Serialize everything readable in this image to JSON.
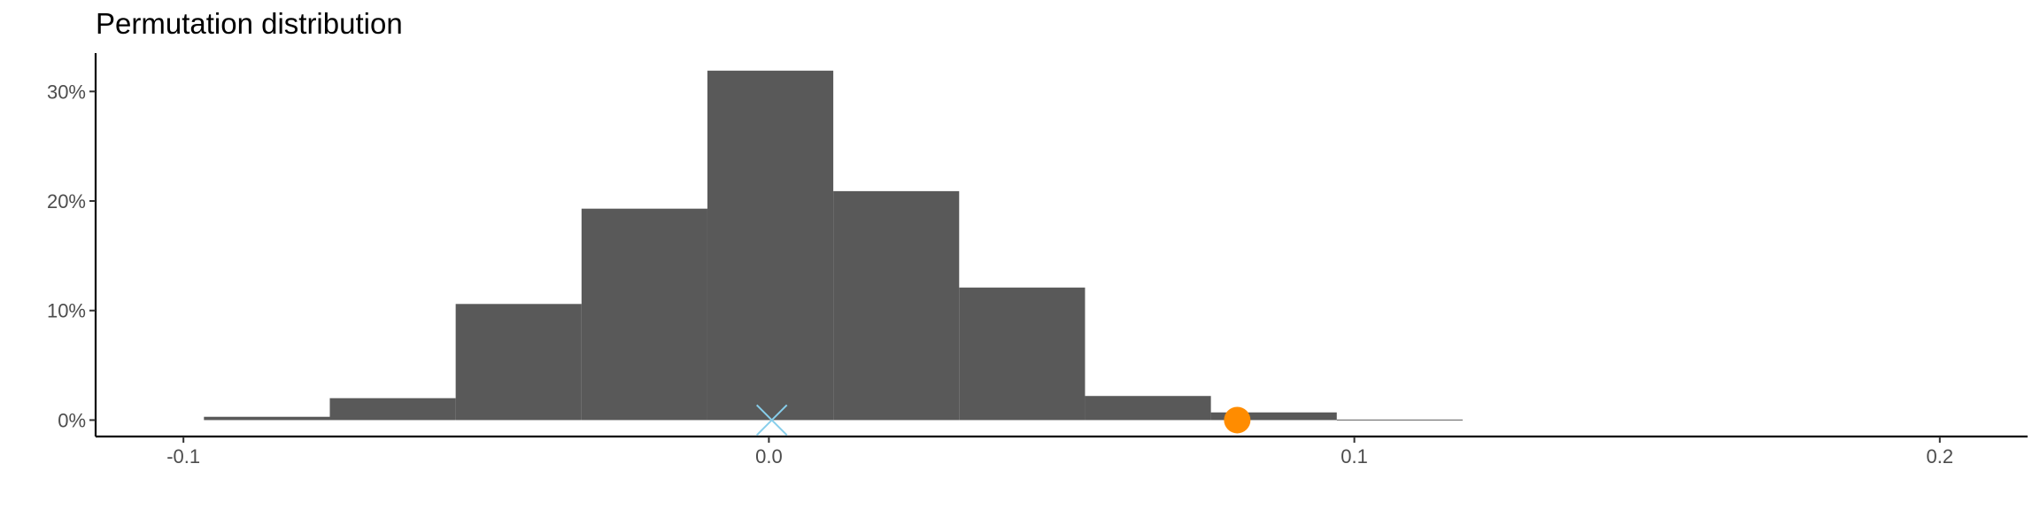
{
  "chart_data": {
    "type": "bar",
    "title": "Permutation distribution",
    "xlabel": "",
    "ylabel": "",
    "xlim": [
      -0.115,
      0.215
    ],
    "ylim": [
      -0.015,
      0.335
    ],
    "x_ticks": [
      -0.1,
      0.0,
      0.1,
      0.2
    ],
    "x_tick_labels": [
      "-0.1",
      "0.0",
      "0.1",
      "0.2"
    ],
    "y_ticks": [
      0,
      0.1,
      0.2,
      0.3
    ],
    "y_tick_labels": [
      "0%",
      "10%",
      "20%",
      "30%"
    ],
    "grid": false,
    "bins": [
      {
        "x0": -0.0965,
        "x1": -0.075,
        "value": 0.003
      },
      {
        "x0": -0.075,
        "x1": -0.0535,
        "value": 0.02
      },
      {
        "x0": -0.0535,
        "x1": -0.032,
        "value": 0.106
      },
      {
        "x0": -0.032,
        "x1": -0.0105,
        "value": 0.193
      },
      {
        "x0": -0.0105,
        "x1": 0.011,
        "value": 0.319
      },
      {
        "x0": 0.011,
        "x1": 0.0325,
        "value": 0.209
      },
      {
        "x0": 0.0325,
        "x1": 0.054,
        "value": 0.121
      },
      {
        "x0": 0.054,
        "x1": 0.0755,
        "value": 0.022
      },
      {
        "x0": 0.0755,
        "x1": 0.097,
        "value": 0.007
      },
      {
        "x0": 0.097,
        "x1": 0.1185,
        "value": 0.0005
      }
    ],
    "bar_color": "#595959",
    "markers": [
      {
        "kind": "x-cross",
        "x": 0.0005,
        "y": 0,
        "color": "#87ceeb"
      },
      {
        "kind": "circle",
        "x": 0.08,
        "y": 0,
        "color": "#ff8c00"
      }
    ]
  }
}
